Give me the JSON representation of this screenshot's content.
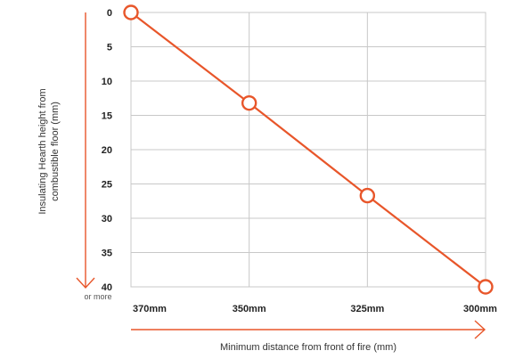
{
  "chart_data": {
    "type": "line",
    "categories": [
      "370mm",
      "350mm",
      "325mm",
      "300mm"
    ],
    "series": [
      {
        "values": [
          0,
          13.2,
          26.7,
          40
        ]
      }
    ],
    "y_ticks": [
      "0",
      "5",
      "10",
      "15",
      "20",
      "25",
      "30",
      "35",
      "40"
    ],
    "y_range": [
      0,
      40
    ],
    "y_inverted": true,
    "y_note": "or more",
    "xlabel": "Minimum distance from front of fire (mm)",
    "ylabel_lines": [
      "Insulating Hearth height from",
      "combustible floor (mm)"
    ],
    "grid": true,
    "colors": {
      "line": "#e8562a",
      "axis_arrow": "#e8562a",
      "grid": "#c8c8c8",
      "marker_fill": "#ffffff"
    }
  }
}
